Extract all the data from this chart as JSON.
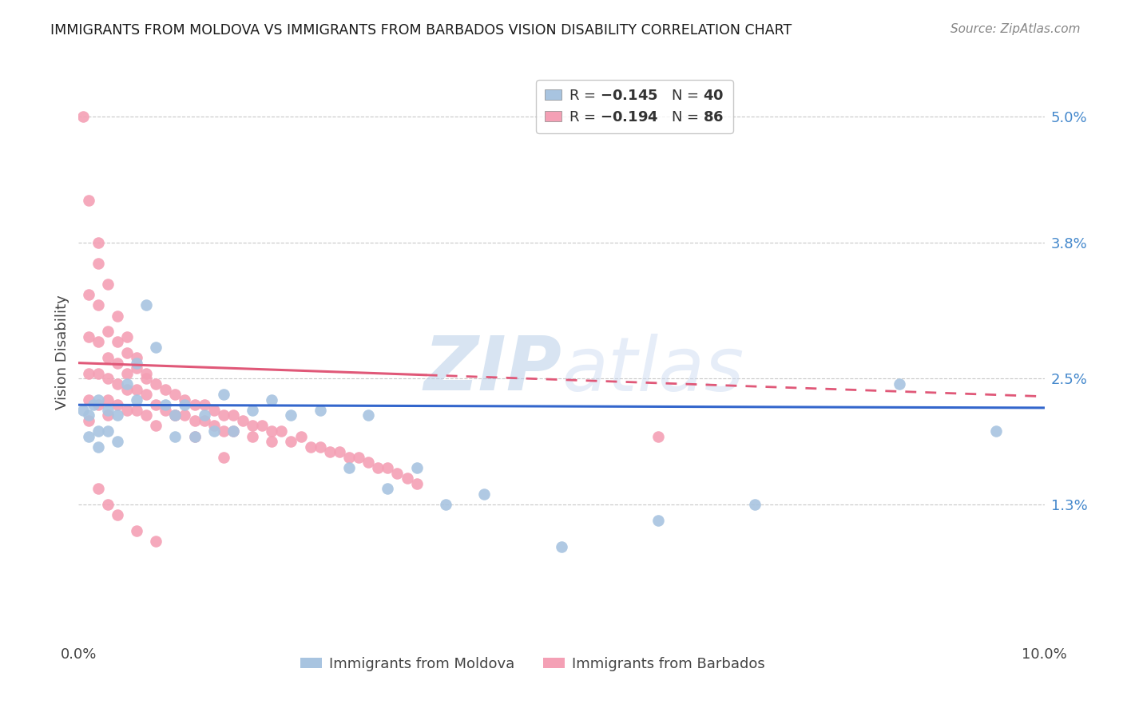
{
  "title": "IMMIGRANTS FROM MOLDOVA VS IMMIGRANTS FROM BARBADOS VISION DISABILITY CORRELATION CHART",
  "source": "Source: ZipAtlas.com",
  "ylabel": "Vision Disability",
  "xlim": [
    0.0,
    0.1
  ],
  "ylim": [
    0.0,
    0.055
  ],
  "ytick_positions": [
    0.013,
    0.025,
    0.038,
    0.05
  ],
  "ytick_labels": [
    "1.3%",
    "2.5%",
    "3.8%",
    "5.0%"
  ],
  "moldova_R": -0.145,
  "moldova_N": 40,
  "barbados_R": -0.194,
  "barbados_N": 86,
  "moldova_color": "#a8c4e0",
  "barbados_color": "#f4a0b5",
  "moldova_line_color": "#3366cc",
  "barbados_line_color": "#e05878",
  "moldova_x": [
    0.0005,
    0.001,
    0.001,
    0.0015,
    0.002,
    0.002,
    0.002,
    0.003,
    0.003,
    0.004,
    0.004,
    0.005,
    0.006,
    0.006,
    0.007,
    0.008,
    0.009,
    0.01,
    0.01,
    0.011,
    0.012,
    0.013,
    0.014,
    0.015,
    0.016,
    0.018,
    0.02,
    0.022,
    0.025,
    0.028,
    0.03,
    0.032,
    0.035,
    0.038,
    0.042,
    0.05,
    0.06,
    0.07,
    0.085,
    0.095
  ],
  "moldova_y": [
    0.022,
    0.0215,
    0.0195,
    0.0225,
    0.023,
    0.02,
    0.0185,
    0.022,
    0.02,
    0.0215,
    0.019,
    0.0245,
    0.0265,
    0.023,
    0.032,
    0.028,
    0.0225,
    0.0215,
    0.0195,
    0.0225,
    0.0195,
    0.0215,
    0.02,
    0.0235,
    0.02,
    0.022,
    0.023,
    0.0215,
    0.022,
    0.0165,
    0.0215,
    0.0145,
    0.0165,
    0.013,
    0.014,
    0.009,
    0.0115,
    0.013,
    0.0245,
    0.02
  ],
  "barbados_x": [
    0.0005,
    0.001,
    0.001,
    0.001,
    0.001,
    0.001,
    0.002,
    0.002,
    0.002,
    0.002,
    0.002,
    0.003,
    0.003,
    0.003,
    0.003,
    0.003,
    0.004,
    0.004,
    0.004,
    0.004,
    0.005,
    0.005,
    0.005,
    0.005,
    0.006,
    0.006,
    0.006,
    0.007,
    0.007,
    0.007,
    0.008,
    0.008,
    0.008,
    0.009,
    0.009,
    0.01,
    0.01,
    0.011,
    0.011,
    0.012,
    0.012,
    0.013,
    0.013,
    0.014,
    0.014,
    0.015,
    0.015,
    0.016,
    0.016,
    0.017,
    0.018,
    0.018,
    0.019,
    0.02,
    0.02,
    0.021,
    0.022,
    0.023,
    0.024,
    0.025,
    0.026,
    0.027,
    0.028,
    0.029,
    0.03,
    0.031,
    0.032,
    0.033,
    0.034,
    0.035,
    0.001,
    0.002,
    0.003,
    0.004,
    0.005,
    0.006,
    0.007,
    0.01,
    0.012,
    0.015,
    0.06,
    0.002,
    0.003,
    0.004,
    0.006,
    0.008
  ],
  "barbados_y": [
    0.05,
    0.033,
    0.029,
    0.0255,
    0.023,
    0.021,
    0.036,
    0.032,
    0.0285,
    0.0255,
    0.0225,
    0.0295,
    0.027,
    0.025,
    0.023,
    0.0215,
    0.0285,
    0.0265,
    0.0245,
    0.0225,
    0.0275,
    0.0255,
    0.024,
    0.022,
    0.026,
    0.024,
    0.022,
    0.025,
    0.0235,
    0.0215,
    0.0245,
    0.0225,
    0.0205,
    0.024,
    0.022,
    0.0235,
    0.0215,
    0.023,
    0.0215,
    0.0225,
    0.021,
    0.0225,
    0.021,
    0.022,
    0.0205,
    0.0215,
    0.02,
    0.0215,
    0.02,
    0.021,
    0.0205,
    0.0195,
    0.0205,
    0.02,
    0.019,
    0.02,
    0.019,
    0.0195,
    0.0185,
    0.0185,
    0.018,
    0.018,
    0.0175,
    0.0175,
    0.017,
    0.0165,
    0.0165,
    0.016,
    0.0155,
    0.015,
    0.042,
    0.038,
    0.034,
    0.031,
    0.029,
    0.027,
    0.0255,
    0.0215,
    0.0195,
    0.0175,
    0.0195,
    0.0145,
    0.013,
    0.012,
    0.0105,
    0.0095
  ],
  "moldova_line_intercept": 0.0225,
  "moldova_line_slope": -0.0028,
  "barbados_line_intercept": 0.0265,
  "barbados_line_slope": -0.032,
  "watermark_text": "ZIPatlas",
  "watermark_zip_color": "#c5d8f0",
  "watermark_atlas_color": "#c5d8f0",
  "background_color": "#ffffff",
  "grid_color": "#c8c8c8"
}
